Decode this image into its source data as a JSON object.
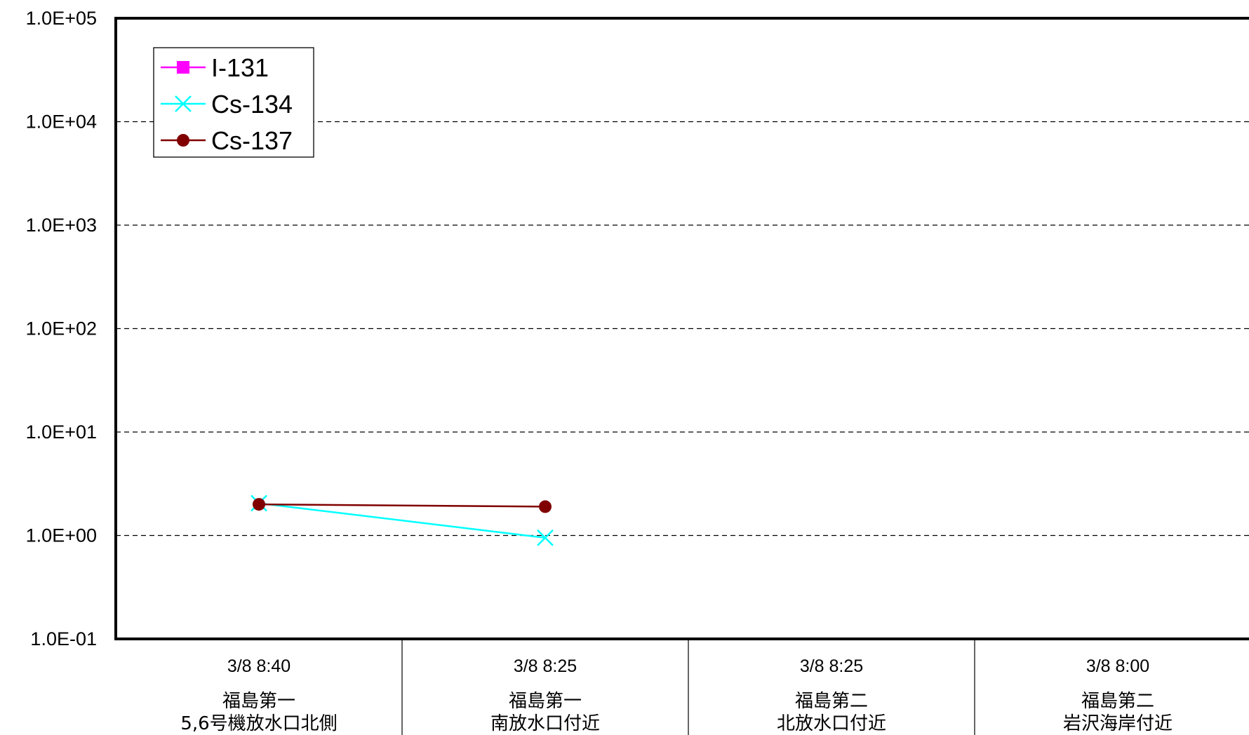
{
  "chart_data": {
    "type": "line",
    "title": "",
    "xlabel": "",
    "ylabel": "",
    "y_scale": "log",
    "ylim": [
      0.1,
      100000
    ],
    "y_ticks": [
      {
        "value": 0.1,
        "label": "1.0E-01"
      },
      {
        "value": 1,
        "label": "1.0E+00"
      },
      {
        "value": 10,
        "label": "1.0E+01"
      },
      {
        "value": 100,
        "label": "1.0E+02"
      },
      {
        "value": 1000,
        "label": "1.0E+03"
      },
      {
        "value": 10000,
        "label": "1.0E+04"
      },
      {
        "value": 100000,
        "label": "1.0E+05"
      }
    ],
    "grid": "horizontal-dashed",
    "legend_position": "top-left",
    "categories": [
      {
        "time": "3/8 8:40",
        "line1": "福島第一",
        "line2": "5,6号機放水口北側"
      },
      {
        "time": "3/8 8:25",
        "line1": "福島第一",
        "line2": "南放水口付近"
      },
      {
        "time": "3/8 8:25",
        "line1": "福島第二",
        "line2": "北放水口付近"
      },
      {
        "time": "3/8 8:00",
        "line1": "福島第二",
        "line2": "岩沢海岸付近"
      }
    ],
    "series": [
      {
        "name": "I-131",
        "color": "#ff00ff",
        "marker": "square",
        "values": [
          null,
          null,
          null,
          null
        ]
      },
      {
        "name": "Cs-134",
        "color": "#00ffff",
        "marker": "x",
        "values": [
          2.05,
          0.95,
          null,
          null
        ]
      },
      {
        "name": "Cs-137",
        "color": "#800000",
        "marker": "circle",
        "values": [
          2.0,
          1.9,
          null,
          null
        ]
      }
    ]
  }
}
